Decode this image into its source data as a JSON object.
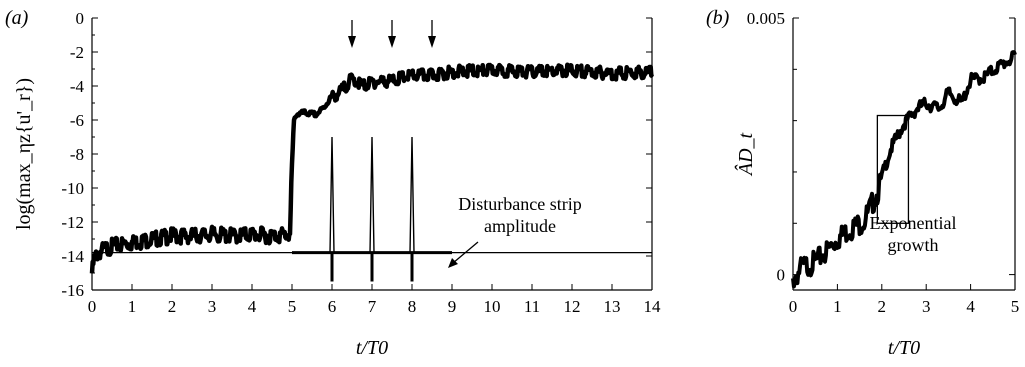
{
  "chart_data": [
    {
      "type": "line",
      "panel_label": "(a)",
      "xlabel": "t/T0",
      "ylabel": "log(max_ηz{u'_r})",
      "xlim": [
        0,
        14
      ],
      "ylim": [
        -16,
        0
      ],
      "xticks": [
        "0",
        "1",
        "2",
        "3",
        "4",
        "5",
        "6",
        "7",
        "8",
        "9",
        "10",
        "11",
        "12",
        "13",
        "14"
      ],
      "yticks": [
        "0",
        "-2",
        "-4",
        "-6",
        "-8",
        "-10",
        "-12",
        "-14",
        "-16"
      ],
      "grid": false,
      "reference_line_y": -13.8,
      "series": [
        {
          "x": [
            0,
            0.05,
            0.15,
            0.3,
            0.5,
            1,
            1.5,
            2,
            2.5,
            3,
            3.5,
            4,
            4.5,
            4.95,
            5.0,
            5.05,
            5.1,
            5.3,
            5.6,
            5.8,
            6.0,
            6.2,
            6.5,
            6.8,
            7.0,
            7.5,
            8.0,
            8.5,
            9,
            10,
            11,
            12,
            13,
            14
          ],
          "y": [
            -14.8,
            -14.0,
            -13.6,
            -13.4,
            -13.2,
            -13.0,
            -12.8,
            -12.6,
            -12.6,
            -12.5,
            -12.6,
            -12.5,
            -12.6,
            -12.5,
            -8.5,
            -6.0,
            -5.6,
            -5.5,
            -5.6,
            -5.2,
            -4.5,
            -4.2,
            -3.4,
            -3.8,
            -3.6,
            -3.5,
            -3.2,
            -3.2,
            -3.0,
            -2.9,
            -3.0,
            -2.9,
            -3.1,
            -3.0
          ]
        },
        {
          "x": [
            5.0,
            5.95,
            6.0,
            6.05,
            6.95,
            7.0,
            7.05,
            7.95,
            8.0,
            8.05,
            9.0
          ],
          "y": [
            -13.8,
            -13.8,
            -7.0,
            -13.8,
            -13.8,
            -7.0,
            -13.8,
            -13.8,
            -7.0,
            -13.8,
            -13.8
          ],
          "dips": [
            -15.5,
            -15.5,
            -15.5
          ]
        }
      ],
      "arrows_at_x": [
        6.5,
        7.5,
        8.5
      ],
      "annotation": "Disturbance strip amplitude",
      "annotation_lines": [
        "Disturbance strip",
        "amplitude"
      ]
    },
    {
      "type": "line",
      "panel_label": "(b)",
      "xlabel": "t/T0",
      "ylabel": "ÂD_t",
      "xlim": [
        0,
        5
      ],
      "ylim": [
        -0.0003,
        0.005
      ],
      "xticks": [
        "0",
        "1",
        "2",
        "3",
        "4",
        "5"
      ],
      "yticks": [
        "0",
        "0.005"
      ],
      "grid": false,
      "series": [
        {
          "x": [
            0,
            0.2,
            0.5,
            0.8,
            1.0,
            1.3,
            1.6,
            1.9,
            2.2,
            2.5,
            2.8,
            3.0,
            3.1,
            3.3,
            3.5,
            3.8,
            4.0,
            4.3,
            4.6,
            5.0
          ],
          "y": [
            0.0,
            0.00025,
            0.00035,
            0.0006,
            0.0008,
            0.001,
            0.00115,
            0.0017,
            0.0025,
            0.003,
            0.0033,
            0.0034,
            0.00335,
            0.0033,
            0.0036,
            0.0034,
            0.00385,
            0.0039,
            0.0041,
            0.0043
          ]
        }
      ],
      "box": {
        "x": [
          1.9,
          2.6
        ],
        "y": [
          0.001,
          0.0031
        ]
      },
      "annotation": "Exponential growth",
      "annotation_lines": [
        "Exponential",
        "growth"
      ]
    }
  ]
}
